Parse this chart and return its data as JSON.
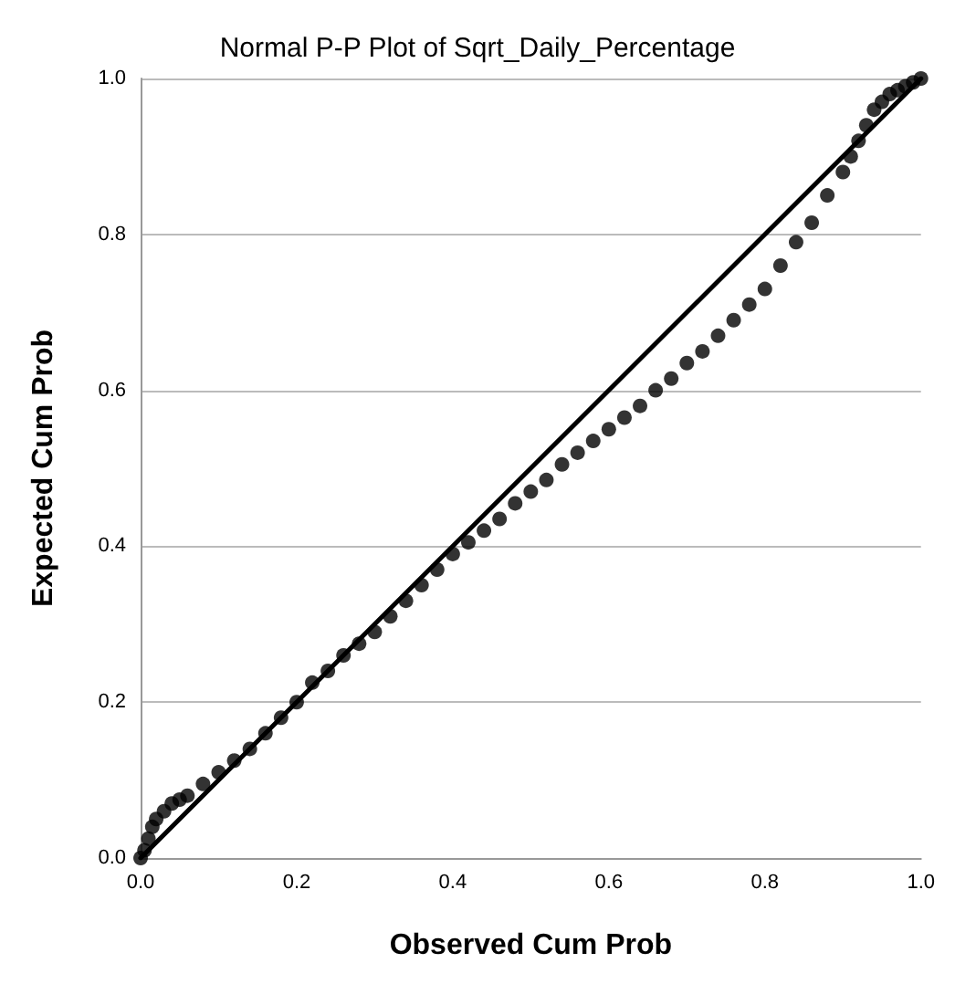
{
  "chart_data": {
    "type": "scatter",
    "title": "Normal P-P Plot of Sqrt_Daily_Percentage",
    "xlabel": "Observed Cum Prob",
    "ylabel": "Expected Cum Prob",
    "xlim": [
      0,
      1
    ],
    "ylim": [
      0,
      1
    ],
    "xticks": [
      {
        "value": 0,
        "label": "0.0"
      },
      {
        "value": 0.2,
        "label": "0.2"
      },
      {
        "value": 0.4,
        "label": "0.4"
      },
      {
        "value": 0.6,
        "label": "0.6"
      },
      {
        "value": 0.8,
        "label": "0.8"
      },
      {
        "value": 1,
        "label": "1.0"
      }
    ],
    "yticks": [
      {
        "value": 0,
        "label": "0.0"
      },
      {
        "value": 0.2,
        "label": "0.2"
      },
      {
        "value": 0.4,
        "label": "0.4"
      },
      {
        "value": 0.6,
        "label": "0.6"
      },
      {
        "value": 0.8,
        "label": "0.8"
      },
      {
        "value": 1,
        "label": "1.0"
      }
    ],
    "grid": "y",
    "series": [
      {
        "color": "#000000",
        "marker": "circle",
        "x": [
          0,
          0.005,
          0.01,
          0.015,
          0.02,
          0.03,
          0.04,
          0.05,
          0.06,
          0.08,
          0.1,
          0.12,
          0.14,
          0.16,
          0.18,
          0.2,
          0.22,
          0.24,
          0.26,
          0.28,
          0.3,
          0.32,
          0.34,
          0.36,
          0.38,
          0.4,
          0.42,
          0.44,
          0.46,
          0.48,
          0.5,
          0.52,
          0.54,
          0.56,
          0.58,
          0.6,
          0.62,
          0.64,
          0.66,
          0.68,
          0.7,
          0.72,
          0.74,
          0.76,
          0.78,
          0.8,
          0.82,
          0.84,
          0.86,
          0.88,
          0.9,
          0.91,
          0.92,
          0.93,
          0.94,
          0.95,
          0.96,
          0.97,
          0.98,
          0.99,
          1
        ],
        "values": [
          0,
          0.01,
          0.025,
          0.04,
          0.05,
          0.06,
          0.07,
          0.075,
          0.08,
          0.095,
          0.11,
          0.125,
          0.14,
          0.16,
          0.18,
          0.2,
          0.225,
          0.24,
          0.26,
          0.275,
          0.29,
          0.31,
          0.33,
          0.35,
          0.37,
          0.39,
          0.405,
          0.42,
          0.435,
          0.455,
          0.47,
          0.485,
          0.505,
          0.52,
          0.535,
          0.55,
          0.565,
          0.58,
          0.6,
          0.615,
          0.635,
          0.65,
          0.67,
          0.69,
          0.71,
          0.73,
          0.76,
          0.79,
          0.815,
          0.85,
          0.88,
          0.9,
          0.92,
          0.94,
          0.96,
          0.97,
          0.98,
          0.985,
          0.99,
          0.995,
          1
        ]
      },
      {
        "type": "line",
        "color": "#000000",
        "marker": "none",
        "x": [
          0,
          1
        ],
        "values": [
          0,
          1
        ]
      }
    ]
  }
}
